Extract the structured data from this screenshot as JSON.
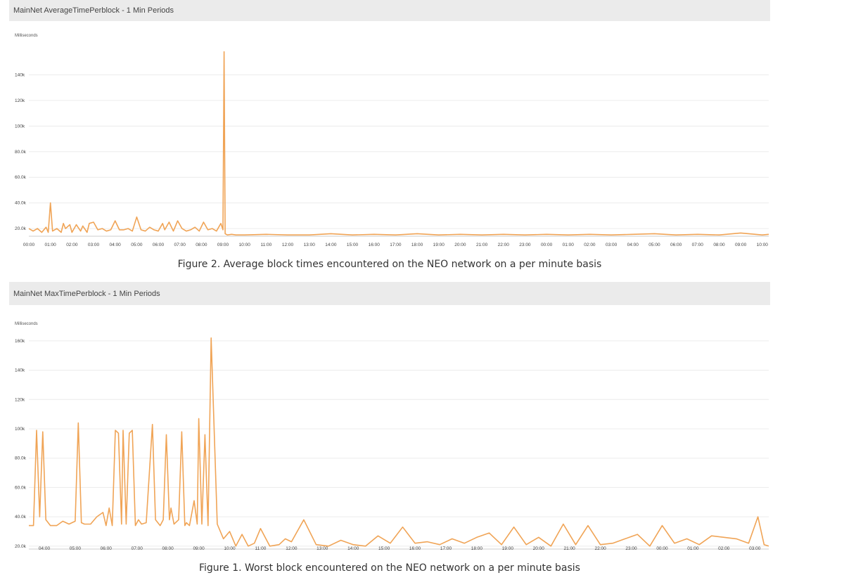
{
  "chart_data": [
    {
      "type": "line",
      "title": "MainNet AverageTimePerblock - 1 Min Periods",
      "ylabel": "Milliseconds",
      "ylim": [
        14000,
        160000
      ],
      "yticks": [
        20000,
        40000,
        60000,
        80000,
        100000,
        120000,
        140000
      ],
      "ytick_labels": [
        "20.0k",
        "40.0k",
        "60.0k",
        "80.0k",
        "100k",
        "120k",
        "140k"
      ],
      "xtick_labels": [
        "00:00",
        "01:00",
        "02:00",
        "03:00",
        "04:00",
        "05:00",
        "06:00",
        "07:00",
        "08:00",
        "09:00",
        "10:00",
        "11:00",
        "12:00",
        "13:00",
        "14:00",
        "15:00",
        "16:00",
        "17:00",
        "18:00",
        "19:00",
        "20:00",
        "21:00",
        "22:00",
        "23:00",
        "00:00",
        "01:00",
        "02:00",
        "03:00",
        "04:00",
        "05:00",
        "06:00",
        "07:00",
        "08:00",
        "09:00",
        "10:00"
      ],
      "xlim": [
        0,
        34.3
      ],
      "grid": true,
      "color": "#f0a456",
      "series": [
        {
          "x": [
            0,
            0.2,
            0.4,
            0.6,
            0.8,
            0.9,
            1.0,
            1.1,
            1.3,
            1.5,
            1.6,
            1.7,
            1.9,
            2.0,
            2.2,
            2.4,
            2.5,
            2.7,
            2.8,
            3.0,
            3.2,
            3.4,
            3.6,
            3.8,
            4.0,
            4.2,
            4.4,
            4.6,
            4.8,
            5.0,
            5.2,
            5.4,
            5.6,
            5.8,
            6.0,
            6.2,
            6.3,
            6.5,
            6.7,
            6.9,
            7.1,
            7.3,
            7.5,
            7.7,
            7.9,
            8.1,
            8.3,
            8.5,
            8.7,
            8.9,
            9.0,
            9.05,
            9.1,
            9.2,
            9.4,
            9.6,
            9.8,
            10,
            11,
            12,
            13,
            14,
            15,
            16,
            17,
            18,
            19,
            20,
            21,
            22,
            23,
            24,
            25,
            26,
            27,
            28,
            29,
            30,
            31,
            32,
            33,
            34,
            34.3
          ],
          "y": [
            20000,
            18000,
            20000,
            17000,
            21000,
            17000,
            40000,
            18000,
            20000,
            17000,
            24000,
            20000,
            23000,
            17000,
            23000,
            18000,
            22000,
            17000,
            24000,
            25000,
            19000,
            20000,
            18000,
            19000,
            26000,
            19000,
            19000,
            20000,
            18000,
            29000,
            19000,
            18000,
            21000,
            19000,
            18000,
            24000,
            19000,
            25000,
            18000,
            26000,
            20000,
            18000,
            19000,
            21000,
            18000,
            25000,
            19000,
            20000,
            18000,
            24000,
            19000,
            158000,
            16000,
            15000,
            15500,
            15000,
            15000,
            15000,
            15500,
            15000,
            15000,
            16000,
            15000,
            15500,
            15000,
            16000,
            15000,
            15500,
            15000,
            15500,
            15000,
            15500,
            15000,
            15500,
            15000,
            15500,
            16000,
            15000,
            15500,
            15000,
            16500,
            15000,
            15500
          ]
        }
      ]
    },
    {
      "type": "line",
      "title": "MainNet MaxTimePerblock - 1 Min Periods",
      "ylabel": "Milliseconds",
      "ylim": [
        18000,
        170000
      ],
      "yticks": [
        20000,
        40000,
        60000,
        80000,
        100000,
        120000,
        140000,
        160000
      ],
      "ytick_labels": [
        "20.0k",
        "40.0k",
        "60.0k",
        "80.0k",
        "100k",
        "120k",
        "140k",
        "160k"
      ],
      "xtick_labels": [
        "04:00",
        "05:00",
        "06:00",
        "07:00",
        "08:00",
        "09:00",
        "10:00",
        "11:00",
        "12:00",
        "13:00",
        "14:00",
        "15:00",
        "16:00",
        "17:00",
        "18:00",
        "19:00",
        "20:00",
        "21:00",
        "22:00",
        "23:00",
        "00:00",
        "01:00",
        "02:00",
        "03:00"
      ],
      "xlim": [
        -0.5,
        23.45
      ],
      "grid": true,
      "color": "#f0a456",
      "series": [
        {
          "x": [
            -0.5,
            -0.35,
            -0.25,
            -0.15,
            -0.05,
            0.05,
            0.2,
            0.4,
            0.6,
            0.8,
            1.0,
            1.1,
            1.2,
            1.3,
            1.5,
            1.7,
            1.9,
            2.0,
            2.1,
            2.2,
            2.3,
            2.4,
            2.5,
            2.55,
            2.65,
            2.75,
            2.85,
            2.95,
            3.05,
            3.15,
            3.3,
            3.5,
            3.6,
            3.75,
            3.8,
            3.85,
            3.95,
            4.05,
            4.1,
            4.2,
            4.35,
            4.45,
            4.55,
            4.6,
            4.7,
            4.85,
            4.95,
            5.0,
            5.1,
            5.2,
            5.3,
            5.4,
            5.6,
            5.8,
            6.0,
            6.2,
            6.4,
            6.6,
            6.8,
            7.0,
            7.3,
            7.6,
            7.8,
            8.0,
            8.4,
            8.8,
            9.2,
            9.6,
            10.0,
            10.4,
            10.8,
            11.2,
            11.6,
            12.0,
            12.4,
            12.8,
            13.2,
            13.6,
            14.0,
            14.4,
            14.8,
            15.2,
            15.6,
            16.0,
            16.4,
            16.8,
            17.2,
            17.6,
            18.0,
            18.4,
            18.8,
            19.2,
            19.6,
            20.0,
            20.4,
            20.8,
            21.2,
            21.6,
            22.0,
            22.4,
            22.8,
            23.1,
            23.3,
            23.45
          ],
          "y": [
            34000,
            34000,
            99000,
            40000,
            98000,
            38000,
            34000,
            34000,
            37000,
            35000,
            37000,
            104000,
            36000,
            35000,
            35000,
            40000,
            43000,
            34000,
            46000,
            34000,
            99000,
            97000,
            35000,
            99000,
            35000,
            97000,
            99000,
            34000,
            38000,
            35000,
            36000,
            103000,
            38000,
            34000,
            36000,
            38000,
            96000,
            38000,
            46000,
            35000,
            38000,
            98000,
            34000,
            36000,
            34000,
            51000,
            35000,
            107000,
            35000,
            96000,
            34000,
            162000,
            35000,
            25000,
            30000,
            20000,
            28000,
            20000,
            22000,
            32000,
            20000,
            21000,
            25000,
            23000,
            38000,
            21000,
            20000,
            24000,
            21000,
            20000,
            27000,
            22000,
            33000,
            22000,
            23000,
            21000,
            25000,
            22000,
            26000,
            29000,
            21000,
            33000,
            21000,
            26000,
            20000,
            35000,
            21000,
            34000,
            21000,
            22000,
            25000,
            28000,
            20000,
            34000,
            22000,
            25000,
            21000,
            27000,
            26000,
            25000,
            22000,
            40000,
            21000,
            20000
          ]
        }
      ]
    }
  ],
  "captions": {
    "fig2": "Figure 2. Average block times encountered on the NEO network on a per minute basis",
    "fig1": "Figure 1. Worst block encountered on the NEO network on a per minute basis"
  }
}
